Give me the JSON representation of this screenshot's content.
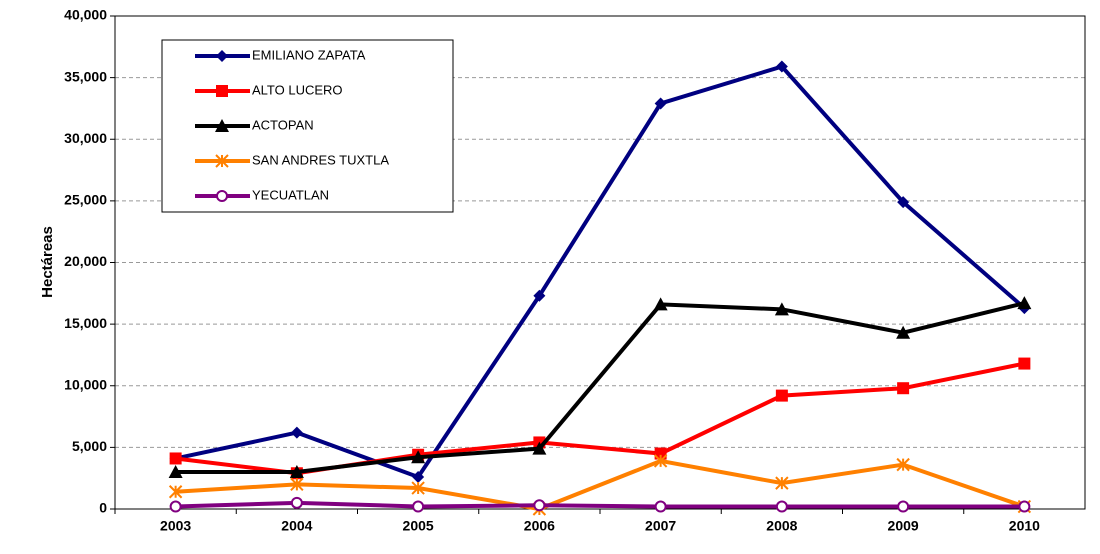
{
  "chart_data": {
    "type": "line",
    "y_label": "Hectáreas",
    "categories": [
      "2003",
      "2004",
      "2005",
      "2006",
      "2007",
      "2008",
      "2009",
      "2010"
    ],
    "series": [
      {
        "name": "EMILIANO ZAPATA",
        "color": "#000080",
        "marker": "diamond",
        "values": [
          4100,
          6200,
          2600,
          17300,
          32900,
          35900,
          24900,
          16300
        ]
      },
      {
        "name": "ALTO LUCERO",
        "color": "#ff0000",
        "marker": "square",
        "values": [
          4100,
          2900,
          4400,
          5400,
          4500,
          9200,
          9800,
          11800
        ]
      },
      {
        "name": "ACTOPAN",
        "color": "#000000",
        "marker": "triangle",
        "values": [
          3000,
          3000,
          4200,
          4900,
          16600,
          16200,
          14300,
          16700
        ]
      },
      {
        "name": "SAN ANDRES TUXTLA",
        "color": "#ff8000",
        "marker": "star",
        "values": [
          1400,
          2000,
          1700,
          0,
          3900,
          2100,
          3600,
          200
        ]
      },
      {
        "name": "YECUATLAN",
        "color": "#800080",
        "marker": "circle",
        "values": [
          200,
          500,
          200,
          300,
          200,
          200,
          200,
          200
        ]
      }
    ],
    "ylim": [
      0,
      40000
    ],
    "yticks": [
      {
        "value": 0,
        "label": "0"
      },
      {
        "value": 5000,
        "label": "5,000"
      },
      {
        "value": 10000,
        "label": "10,000"
      },
      {
        "value": 15000,
        "label": "15,000"
      },
      {
        "value": 20000,
        "label": "20,000"
      },
      {
        "value": 25000,
        "label": "25,000"
      },
      {
        "value": 30000,
        "label": "30,000"
      },
      {
        "value": 35000,
        "label": "35,000"
      },
      {
        "value": 40000,
        "label": "40,000"
      }
    ],
    "grid": true
  }
}
